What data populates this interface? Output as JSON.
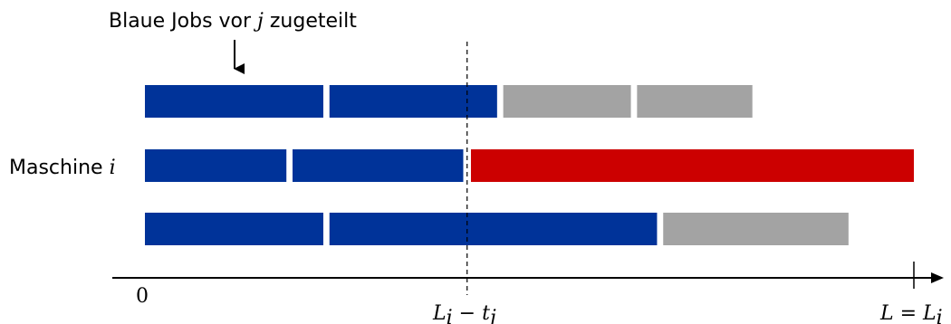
{
  "annotation": {
    "text_before": "Blaue Jobs vor ",
    "var": "j",
    "text_after": " zugeteilt"
  },
  "machine_label": {
    "text": "Maschine ",
    "var": "i"
  },
  "axis": {
    "origin": "0",
    "mid_label": {
      "L": "L",
      "i": "i",
      "minus": " − ",
      "t": "t",
      "j": "j"
    },
    "end_label": {
      "L1": "L",
      "eq": " = ",
      "L2": "L",
      "i": "i"
    }
  },
  "colors": {
    "blue": "#003399",
    "gray": "#a3a3a3",
    "red": "#cc0000"
  },
  "rows": [
    {
      "name": "machine-row-1",
      "jobs": [
        {
          "color": "blue",
          "start": 0.0,
          "end": 0.232
        },
        {
          "color": "blue",
          "start": 0.24,
          "end": 0.458
        },
        {
          "color": "gray",
          "start": 0.466,
          "end": 0.632
        },
        {
          "color": "gray",
          "start": 0.64,
          "end": 0.79
        }
      ]
    },
    {
      "name": "machine-row-i",
      "jobs": [
        {
          "color": "blue",
          "start": 0.0,
          "end": 0.184
        },
        {
          "color": "blue",
          "start": 0.192,
          "end": 0.414
        },
        {
          "color": "red",
          "start": 0.424,
          "end": 1.0
        }
      ]
    },
    {
      "name": "machine-row-3",
      "jobs": [
        {
          "color": "blue",
          "start": 0.0,
          "end": 0.232
        },
        {
          "color": "blue",
          "start": 0.24,
          "end": 0.666
        },
        {
          "color": "gray",
          "start": 0.674,
          "end": 0.915
        }
      ]
    }
  ],
  "markers": {
    "dashed_at": 0.419,
    "end_at": 1.0
  }
}
